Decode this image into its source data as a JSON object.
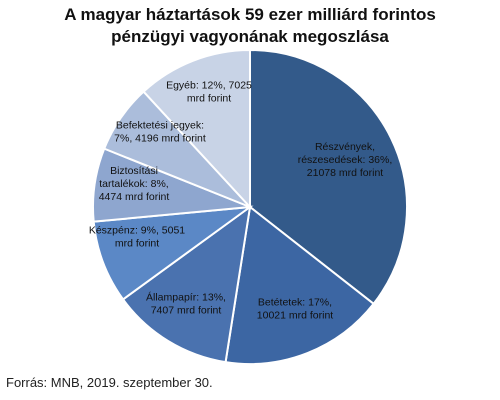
{
  "chart_data": {
    "type": "pie",
    "title": [
      "A magyar háztartások 59 ezer milliárd forintos",
      "pénzügyi vagyonának megoszlása"
    ],
    "slices": [
      {
        "key": "reszvenyek",
        "label_lines": [
          "Részvények,",
          "részesedések: 36%,",
          "21078 mrd forint"
        ],
        "percent": 36,
        "value": 21078,
        "color": "#335a8a",
        "label_color": "#ffffff"
      },
      {
        "key": "betetek",
        "label_lines": [
          "Betétetek: 17%,",
          "10021 mrd forint"
        ],
        "percent": 17,
        "value": 10021,
        "color": "#3c66a3",
        "label_color": "#ffffff"
      },
      {
        "key": "allampapir",
        "label_lines": [
          "Állampapír: 13%,",
          "7407 mrd forint"
        ],
        "percent": 13,
        "value": 7407,
        "color": "#4a72af",
        "label_color": "#ffffff"
      },
      {
        "key": "keszpenz",
        "label_lines": [
          "Készpénz: 9%, 5051",
          "mrd forint"
        ],
        "percent": 9,
        "value": 5051,
        "color": "#5b88c6",
        "label_color": "#ffffff"
      },
      {
        "key": "biztositasi",
        "label_lines": [
          "Biztosítási",
          "tartalékok: 8%,",
          "4474 mrd forint"
        ],
        "percent": 8,
        "value": 4474,
        "color": "#8ea6cf",
        "label_color": "#111111"
      },
      {
        "key": "befektetesi",
        "label_lines": [
          "Befektetési jegyek:",
          "7%, 4196 mrd forint"
        ],
        "percent": 7,
        "value": 4196,
        "color": "#abbddb",
        "label_color": "#111111"
      },
      {
        "key": "egyeb",
        "label_lines": [
          "Egyéb: 12%, 7025",
          "mrd forint"
        ],
        "percent": 12,
        "value": 7025,
        "color": "#c8d3e6",
        "label_color": "#111111"
      }
    ],
    "slice_border_color": "#ffffff",
    "source": "Forrás: MNB, 2019. szeptember 30."
  }
}
